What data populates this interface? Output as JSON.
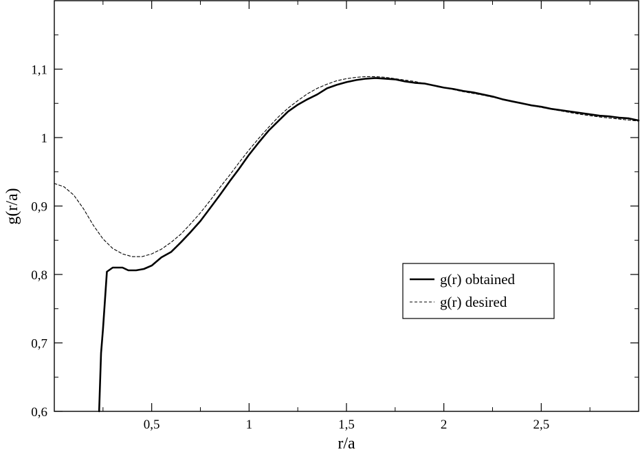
{
  "chart_data": {
    "type": "line",
    "title": "",
    "xlabel": "r/a",
    "ylabel": "g(r/a)",
    "xlim": [
      0,
      3
    ],
    "ylim": [
      0.6,
      1.2
    ],
    "x_ticks": [
      0.5,
      1,
      1.5,
      2,
      2.5
    ],
    "x_tick_labels": [
      "0,5",
      "1",
      "1,5",
      "2",
      "2,5"
    ],
    "y_ticks": [
      0.6,
      0.7,
      0.8,
      0.9,
      1.0,
      1.1
    ],
    "y_tick_labels": [
      "0,6",
      "0,7",
      "0,8",
      "0,9",
      "1",
      "1,1"
    ],
    "grid": false,
    "legend_position": "center-right",
    "series": [
      {
        "name": "g(r) obtained",
        "style": "solid",
        "color": "#000000",
        "points": [
          [
            0.23,
            0.6
          ],
          [
            0.24,
            0.685
          ],
          [
            0.25,
            0.72
          ],
          [
            0.27,
            0.804
          ],
          [
            0.3,
            0.81
          ],
          [
            0.35,
            0.81
          ],
          [
            0.38,
            0.806
          ],
          [
            0.42,
            0.806
          ],
          [
            0.46,
            0.808
          ],
          [
            0.5,
            0.813
          ],
          [
            0.55,
            0.825
          ],
          [
            0.6,
            0.833
          ],
          [
            0.65,
            0.847
          ],
          [
            0.7,
            0.862
          ],
          [
            0.75,
            0.878
          ],
          [
            0.8,
            0.897
          ],
          [
            0.85,
            0.916
          ],
          [
            0.9,
            0.936
          ],
          [
            0.95,
            0.955
          ],
          [
            1.0,
            0.975
          ],
          [
            1.05,
            0.993
          ],
          [
            1.1,
            1.01
          ],
          [
            1.15,
            1.024
          ],
          [
            1.2,
            1.038
          ],
          [
            1.25,
            1.048
          ],
          [
            1.3,
            1.056
          ],
          [
            1.35,
            1.063
          ],
          [
            1.4,
            1.072
          ],
          [
            1.45,
            1.077
          ],
          [
            1.5,
            1.081
          ],
          [
            1.55,
            1.084
          ],
          [
            1.6,
            1.086
          ],
          [
            1.65,
            1.087
          ],
          [
            1.7,
            1.086
          ],
          [
            1.75,
            1.085
          ],
          [
            1.8,
            1.082
          ],
          [
            1.85,
            1.08
          ],
          [
            1.9,
            1.079
          ],
          [
            1.95,
            1.076
          ],
          [
            2.0,
            1.073
          ],
          [
            2.05,
            1.071
          ],
          [
            2.1,
            1.068
          ],
          [
            2.15,
            1.066
          ],
          [
            2.2,
            1.063
          ],
          [
            2.25,
            1.06
          ],
          [
            2.3,
            1.056
          ],
          [
            2.35,
            1.053
          ],
          [
            2.4,
            1.05
          ],
          [
            2.45,
            1.047
          ],
          [
            2.5,
            1.045
          ],
          [
            2.55,
            1.042
          ],
          [
            2.6,
            1.04
          ],
          [
            2.65,
            1.038
          ],
          [
            2.7,
            1.036
          ],
          [
            2.75,
            1.034
          ],
          [
            2.8,
            1.032
          ],
          [
            2.85,
            1.031
          ],
          [
            2.9,
            1.029
          ],
          [
            2.95,
            1.028
          ],
          [
            3.0,
            1.025
          ]
        ]
      },
      {
        "name": "g(r) desired",
        "style": "dashed",
        "color": "#000000",
        "points": [
          [
            0.0,
            0.933
          ],
          [
            0.05,
            0.928
          ],
          [
            0.1,
            0.916
          ],
          [
            0.15,
            0.896
          ],
          [
            0.2,
            0.872
          ],
          [
            0.25,
            0.852
          ],
          [
            0.3,
            0.838
          ],
          [
            0.35,
            0.83
          ],
          [
            0.4,
            0.826
          ],
          [
            0.45,
            0.826
          ],
          [
            0.5,
            0.83
          ],
          [
            0.55,
            0.837
          ],
          [
            0.6,
            0.847
          ],
          [
            0.65,
            0.859
          ],
          [
            0.7,
            0.874
          ],
          [
            0.75,
            0.89
          ],
          [
            0.8,
            0.908
          ],
          [
            0.85,
            0.927
          ],
          [
            0.9,
            0.945
          ],
          [
            0.95,
            0.964
          ],
          [
            1.0,
            0.982
          ],
          [
            1.05,
            0.999
          ],
          [
            1.1,
            1.015
          ],
          [
            1.15,
            1.03
          ],
          [
            1.2,
            1.043
          ],
          [
            1.25,
            1.054
          ],
          [
            1.3,
            1.064
          ],
          [
            1.35,
            1.072
          ],
          [
            1.4,
            1.078
          ],
          [
            1.45,
            1.083
          ],
          [
            1.5,
            1.086
          ],
          [
            1.55,
            1.088
          ],
          [
            1.6,
            1.089
          ],
          [
            1.65,
            1.089
          ],
          [
            1.7,
            1.088
          ],
          [
            1.75,
            1.086
          ],
          [
            1.8,
            1.084
          ],
          [
            1.85,
            1.082
          ],
          [
            1.9,
            1.079
          ],
          [
            1.95,
            1.076
          ],
          [
            2.0,
            1.073
          ],
          [
            2.1,
            1.067
          ],
          [
            2.2,
            1.062
          ],
          [
            2.3,
            1.056
          ],
          [
            2.4,
            1.05
          ],
          [
            2.5,
            1.044
          ],
          [
            2.6,
            1.039
          ],
          [
            2.7,
            1.034
          ],
          [
            2.8,
            1.03
          ],
          [
            2.9,
            1.027
          ],
          [
            3.0,
            1.024
          ]
        ]
      }
    ]
  }
}
